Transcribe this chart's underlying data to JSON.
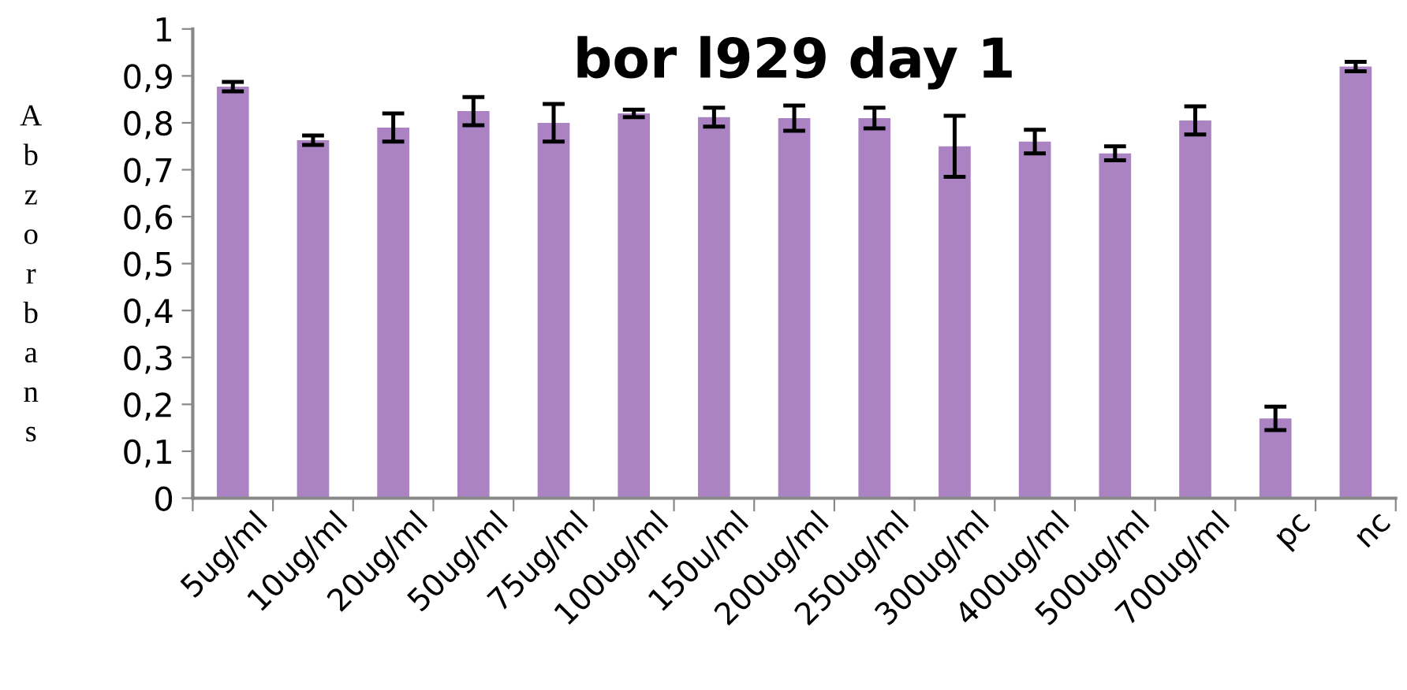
{
  "chart_data": {
    "type": "bar",
    "title": "bor l929 day 1",
    "ylabel": "Abzorbans",
    "categories": [
      "5ug/ml",
      "10ug/ml",
      "20ug/ml",
      "50ug/ml",
      "75ug/ml",
      "100ug/ml",
      "150u/ml",
      "200ug/ml",
      "250ug/ml",
      "300ug/ml",
      "400ug/ml",
      "500ug/ml",
      "700ug/ml",
      "pc",
      "nc"
    ],
    "values": [
      0.877,
      0.763,
      0.79,
      0.825,
      0.8,
      0.82,
      0.812,
      0.81,
      0.81,
      0.75,
      0.76,
      0.735,
      0.805,
      0.17,
      0.92
    ],
    "errors": [
      0.01,
      0.01,
      0.03,
      0.03,
      0.04,
      0.008,
      0.02,
      0.027,
      0.022,
      0.065,
      0.025,
      0.015,
      0.03,
      0.025,
      0.01
    ],
    "color": "#ab83c3",
    "ylim": [
      0,
      1
    ],
    "yticks": [
      0,
      {
        "value": 0.1,
        "label": "0,1"
      },
      {
        "value": 0.2,
        "label": "0,2"
      },
      {
        "value": 0.3,
        "label": "0,3"
      },
      {
        "value": 0.4,
        "label": "0,4"
      },
      {
        "value": 0.5,
        "label": "0,5"
      },
      {
        "value": 0.6,
        "label": "0,6"
      },
      {
        "value": 0.7,
        "label": "0,7"
      },
      {
        "value": 0.8,
        "label": "0,8"
      },
      {
        "value": 0.9,
        "label": "0,9"
      },
      1
    ],
    "grid": false,
    "legend": false
  }
}
